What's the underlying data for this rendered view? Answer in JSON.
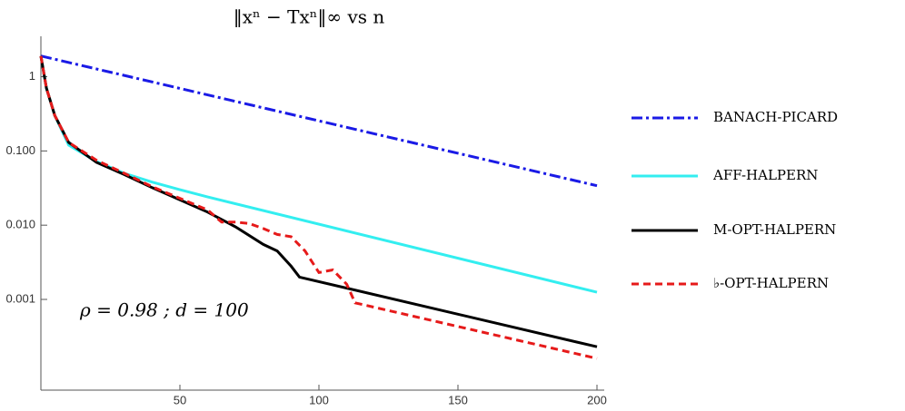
{
  "chart_data": {
    "type": "line",
    "title": "‖xⁿ − Txⁿ‖∞  vs  n",
    "annotation": "ρ = 0.98 ;  d = 100",
    "log_y": true,
    "xlim": [
      0,
      200
    ],
    "xticks": [
      50,
      100,
      150,
      200
    ],
    "ylim": [
      6e-05,
      3.5
    ],
    "yticks": [
      1,
      {
        "value": 0.1,
        "label": "0.100"
      },
      {
        "value": 0.01,
        "label": "0.010"
      },
      {
        "value": 0.001,
        "label": "0.001"
      }
    ],
    "series": [
      {
        "name": "BANACH-PICARD",
        "color": "#1a1ae6",
        "dash": "dashdot",
        "x": [
          0,
          200
        ],
        "values": [
          1.9,
          0.034
        ]
      },
      {
        "name": "AFF-HALPERN",
        "color": "#33eef0",
        "dash": "solid",
        "x": [
          0,
          2,
          5,
          10,
          20,
          30,
          40,
          50,
          60,
          200
        ],
        "values": [
          1.9,
          0.7,
          0.3,
          0.12,
          0.072,
          0.05,
          0.038,
          0.03,
          0.024,
          0.00125
        ]
      },
      {
        "name": "M-OPT-HALPERN",
        "color": "#000000",
        "dash": "solid",
        "x": [
          0,
          2,
          5,
          10,
          20,
          30,
          40,
          50,
          60,
          70,
          80,
          85,
          90,
          93,
          200
        ],
        "values": [
          1.9,
          0.7,
          0.3,
          0.13,
          0.07,
          0.048,
          0.032,
          0.022,
          0.015,
          0.0095,
          0.0055,
          0.0045,
          0.0028,
          0.002,
          0.00023
        ]
      },
      {
        "name": "♭-OPT-HALPERN",
        "color": "#e61a1a",
        "dash": "dashed",
        "x": [
          0,
          2,
          5,
          10,
          20,
          30,
          40,
          50,
          60,
          65,
          70,
          75,
          80,
          85,
          90,
          95,
          100,
          105,
          110,
          113,
          200
        ],
        "values": [
          1.9,
          0.7,
          0.3,
          0.13,
          0.075,
          0.05,
          0.033,
          0.023,
          0.016,
          0.011,
          0.011,
          0.0105,
          0.009,
          0.0075,
          0.007,
          0.0045,
          0.0023,
          0.0025,
          0.0016,
          0.0009,
          0.00016
        ]
      }
    ]
  }
}
